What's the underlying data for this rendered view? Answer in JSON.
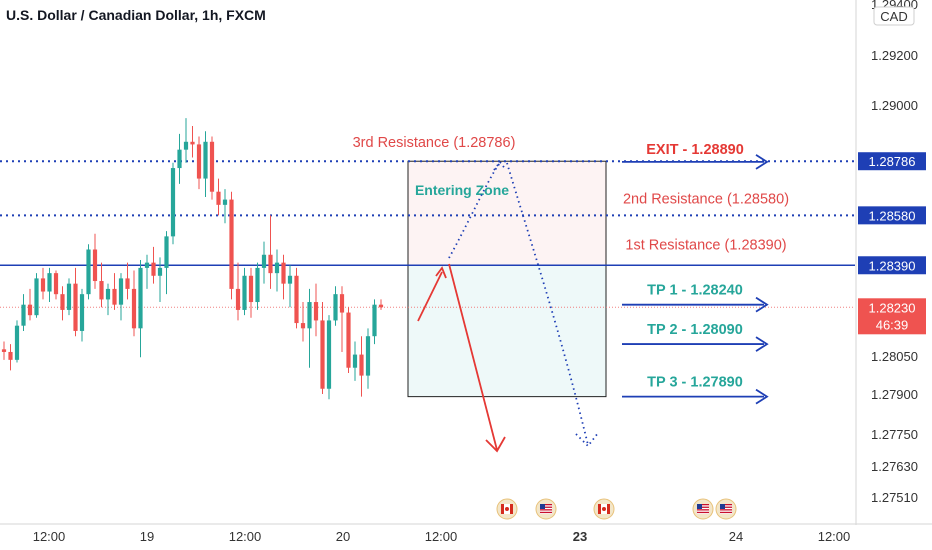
{
  "header": {
    "title": "U.S. Dollar / Canadian Dollar, 1h, FXCM"
  },
  "price_scale": {
    "currency": "CAD"
  },
  "chart_data": {
    "type": "candlestick",
    "title": "U.S. Dollar / Canadian Dollar, 1h, FXCM",
    "ylim": [
      1.2745,
      1.2945
    ],
    "y_ticks": [
      "1.29400",
      "1.29200",
      "1.29000",
      "1.28050",
      "1.27900",
      "1.27750",
      "1.27630",
      "1.27510"
    ],
    "x_ticks": [
      "12:00",
      "19",
      "12:00",
      "20",
      "12:00",
      "23",
      "24",
      "12:00"
    ],
    "current_price": {
      "value": "1.28230",
      "countdown": "46:39"
    },
    "level_tags": [
      "1.28786",
      "1.28580",
      "1.28390"
    ],
    "levels": [
      {
        "name": "3rd Resistance",
        "label": "3rd Resistance (1.28786)",
        "value": 1.28786,
        "style": "dotted"
      },
      {
        "name": "2nd Resistance",
        "label": "2nd Resistance (1.28580)",
        "value": 1.2858,
        "style": "dotted"
      },
      {
        "name": "1st Resistance",
        "label": "1st Resistance (1.28390)",
        "value": 1.2839,
        "style": "solid"
      }
    ],
    "targets": [
      {
        "label": "EXIT - 1.28890",
        "value": 1.2889,
        "color": "#e53935"
      },
      {
        "label": "TP 1 - 1.28240",
        "value": 1.2824,
        "color": "#26a69a"
      },
      {
        "label": "TP 2 - 1.28090",
        "value": 1.2809,
        "color": "#26a69a"
      },
      {
        "label": "TP 3 - 1.27890",
        "value": 1.2789,
        "color": "#26a69a"
      }
    ],
    "zone_label": "Entering Zone",
    "zone": {
      "top": 1.28786,
      "mid": 1.2839,
      "bottom": 1.2789
    },
    "candles": [
      [
        1.2807,
        1.281,
        1.2803,
        1.2806
      ],
      [
        1.2806,
        1.2809,
        1.2799,
        1.2803
      ],
      [
        1.2803,
        1.2818,
        1.2802,
        1.2816
      ],
      [
        1.2816,
        1.2828,
        1.2814,
        1.2824
      ],
      [
        1.2824,
        1.283,
        1.2818,
        1.282
      ],
      [
        1.282,
        1.2836,
        1.2819,
        1.2834
      ],
      [
        1.2834,
        1.2838,
        1.2826,
        1.2829
      ],
      [
        1.2829,
        1.2838,
        1.2825,
        1.2836
      ],
      [
        1.2836,
        1.2837,
        1.2826,
        1.2828
      ],
      [
        1.2828,
        1.2831,
        1.2818,
        1.2822
      ],
      [
        1.2822,
        1.2834,
        1.282,
        1.2832
      ],
      [
        1.2832,
        1.2838,
        1.2812,
        1.2814
      ],
      [
        1.2814,
        1.283,
        1.281,
        1.2828
      ],
      [
        1.2828,
        1.2847,
        1.2826,
        1.2845
      ],
      [
        1.2845,
        1.2851,
        1.283,
        1.2833
      ],
      [
        1.2833,
        1.284,
        1.2823,
        1.2826
      ],
      [
        1.2826,
        1.2832,
        1.282,
        1.283
      ],
      [
        1.283,
        1.2836,
        1.2822,
        1.2824
      ],
      [
        1.2824,
        1.2836,
        1.2818,
        1.2834
      ],
      [
        1.2834,
        1.284,
        1.2826,
        1.283
      ],
      [
        1.283,
        1.2837,
        1.2812,
        1.2815
      ],
      [
        1.2815,
        1.2841,
        1.2804,
        1.2838
      ],
      [
        1.2838,
        1.2843,
        1.283,
        1.284
      ],
      [
        1.284,
        1.2846,
        1.2832,
        1.2835
      ],
      [
        1.2835,
        1.2842,
        1.2825,
        1.2838
      ],
      [
        1.2838,
        1.2852,
        1.2828,
        1.285
      ],
      [
        1.285,
        1.2878,
        1.2847,
        1.2876
      ],
      [
        1.2876,
        1.2889,
        1.287,
        1.2883
      ],
      [
        1.2883,
        1.2895,
        1.2878,
        1.2886
      ],
      [
        1.2886,
        1.2892,
        1.288,
        1.2885
      ],
      [
        1.2885,
        1.2888,
        1.2868,
        1.2872
      ],
      [
        1.2872,
        1.289,
        1.2865,
        1.2886
      ],
      [
        1.2886,
        1.2888,
        1.2864,
        1.2867
      ],
      [
        1.2867,
        1.2872,
        1.2858,
        1.2862
      ],
      [
        1.2862,
        1.2868,
        1.2855,
        1.2864
      ],
      [
        1.2864,
        1.2867,
        1.2826,
        1.283
      ],
      [
        1.283,
        1.284,
        1.2818,
        1.2822
      ],
      [
        1.2822,
        1.2838,
        1.282,
        1.2835
      ],
      [
        1.2835,
        1.2838,
        1.2819,
        1.2825
      ],
      [
        1.2825,
        1.284,
        1.2822,
        1.2838
      ],
      [
        1.2838,
        1.2848,
        1.2832,
        1.2843
      ],
      [
        1.2843,
        1.2858,
        1.283,
        1.2836
      ],
      [
        1.2836,
        1.2845,
        1.2829,
        1.284
      ],
      [
        1.284,
        1.2843,
        1.2826,
        1.2832
      ],
      [
        1.2832,
        1.2839,
        1.2823,
        1.2835
      ],
      [
        1.2835,
        1.2838,
        1.2815,
        1.2817
      ],
      [
        1.2817,
        1.2825,
        1.281,
        1.2815
      ],
      [
        1.2815,
        1.283,
        1.28,
        1.2825
      ],
      [
        1.2825,
        1.2832,
        1.2812,
        1.2818
      ],
      [
        1.2818,
        1.2825,
        1.279,
        1.2792
      ],
      [
        1.2792,
        1.282,
        1.2788,
        1.2818
      ],
      [
        1.2818,
        1.2831,
        1.2816,
        1.2828
      ],
      [
        1.2828,
        1.2831,
        1.2806,
        1.2821
      ],
      [
        1.2821,
        1.2823,
        1.2798,
        1.28
      ],
      [
        1.28,
        1.281,
        1.2795,
        1.2805
      ],
      [
        1.2805,
        1.2812,
        1.2789,
        1.2797
      ],
      [
        1.2797,
        1.2815,
        1.2792,
        1.2812
      ],
      [
        1.2812,
        1.2826,
        1.2809,
        1.2824
      ],
      [
        1.2824,
        1.2826,
        1.2822,
        1.2823
      ]
    ]
  }
}
